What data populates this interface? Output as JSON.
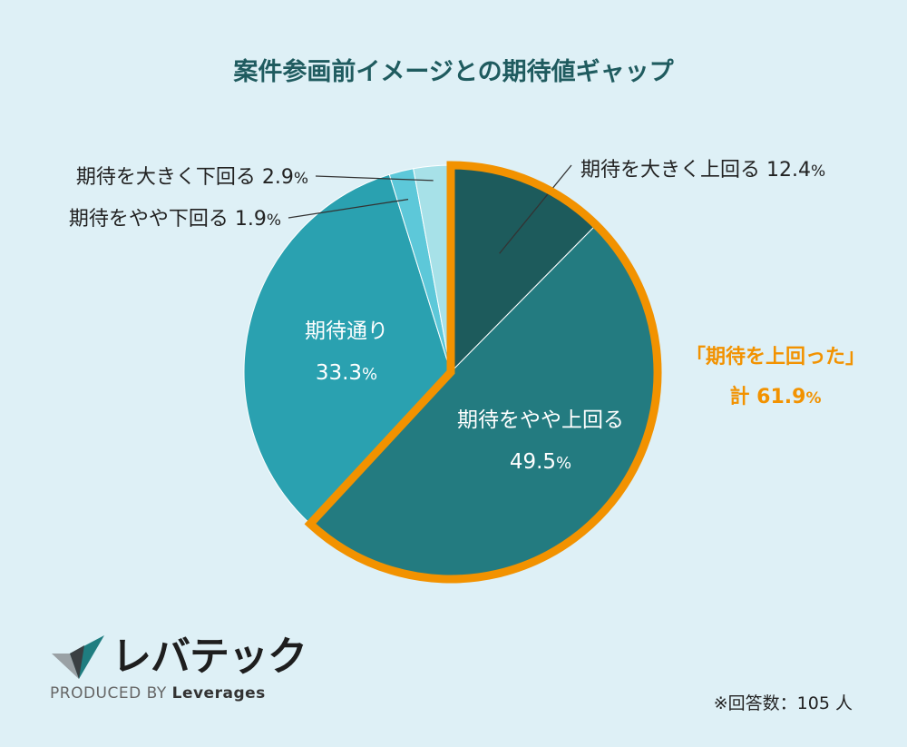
{
  "chart_data": {
    "type": "pie",
    "title": "案件参画前イメージとの期待値ギャップ",
    "slices": [
      {
        "label": "期待を大きく上回る",
        "value": 12.4,
        "value_text": "12.4",
        "color": "#1d5b5c"
      },
      {
        "label": "期待をやや上回る",
        "value": 49.5,
        "value_text": "49.5",
        "color": "#237b80"
      },
      {
        "label": "期待通り",
        "value": 33.3,
        "value_text": "33.3",
        "color": "#2aa1b0"
      },
      {
        "label": "期待をやや下回る",
        "value": 1.9,
        "value_text": "1.9",
        "color": "#5dc8d9"
      },
      {
        "label": "期待を大きく下回る",
        "value": 2.9,
        "value_text": "2.9",
        "color": "#a7e1e8"
      }
    ],
    "unit": "%",
    "highlight": {
      "line1": "「期待を上回った」",
      "line2": "計 61.9",
      "unit": "%",
      "color": "#f29200"
    },
    "start_angle": "12 o'clock",
    "direction": "clockwise"
  },
  "logo": {
    "brand": "レバテック",
    "produced_by": "PRODUCED BY",
    "company": "Leverages"
  },
  "note": "※回答数：105 人"
}
